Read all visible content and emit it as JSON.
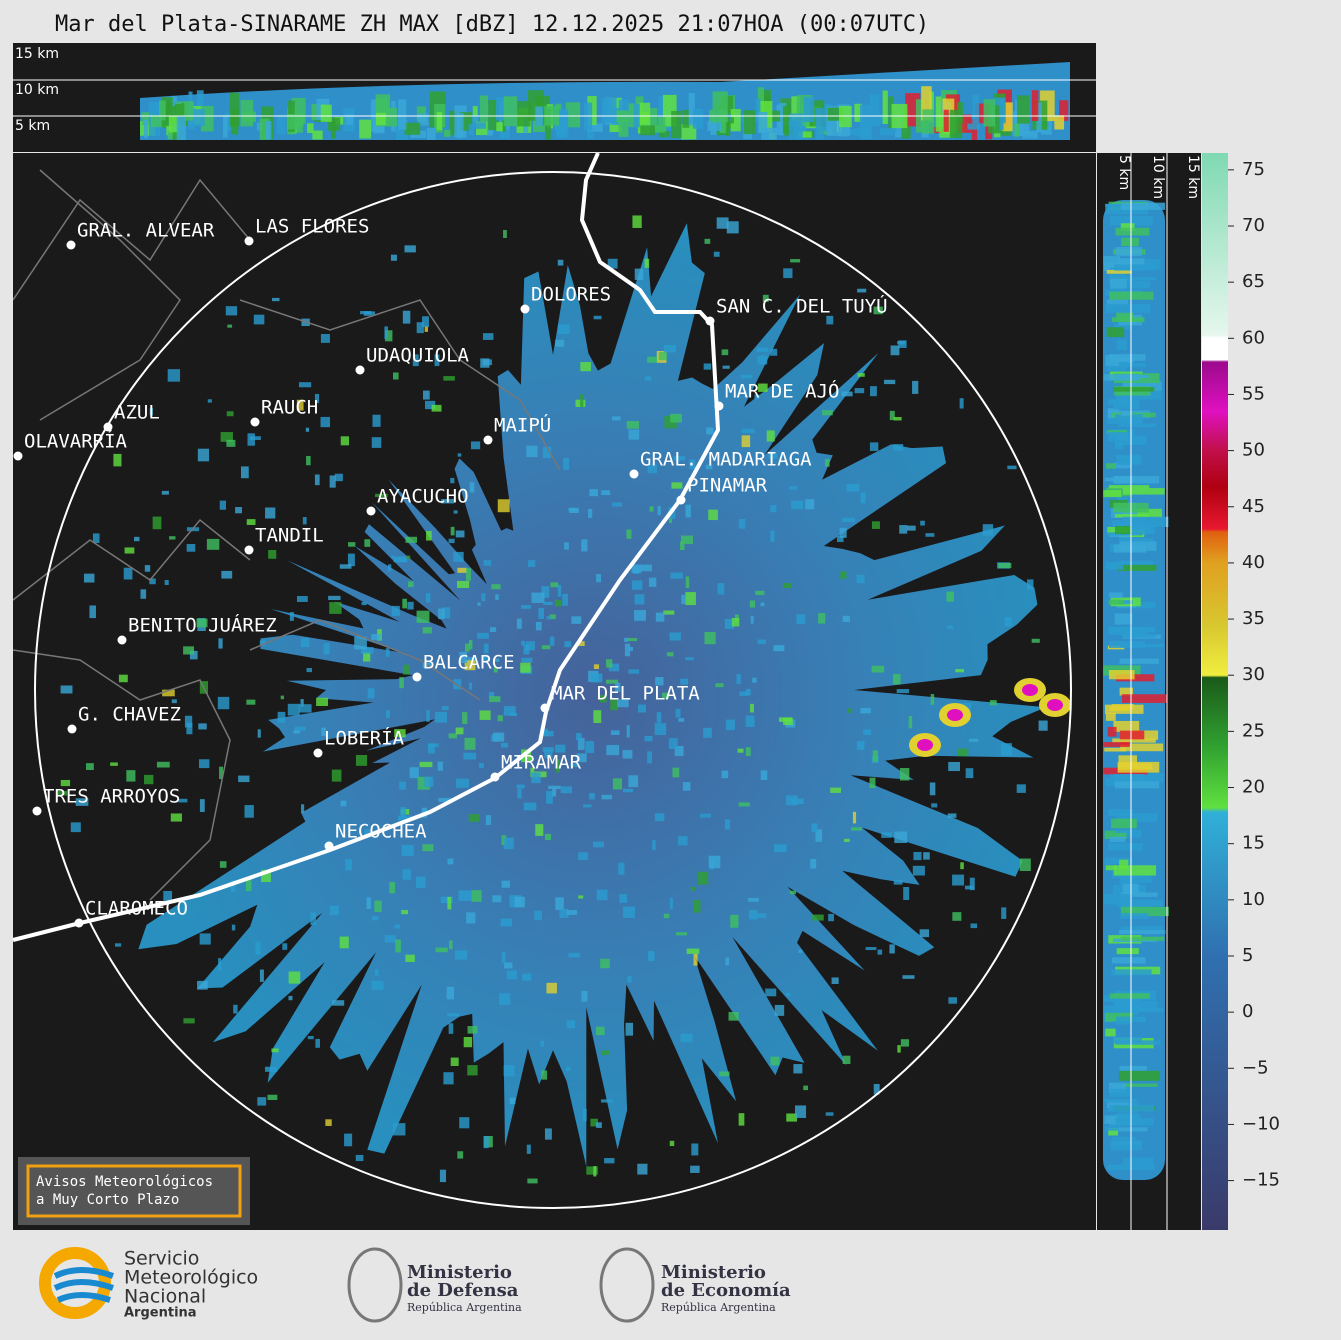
{
  "title": "Mar del Plata-SINARAME ZH MAX [dBZ] 12.12.2025 21:07HOA (00:07UTC)",
  "top_panel": {
    "labels": [
      "15 km",
      "10 km",
      "5 km"
    ]
  },
  "side_panel": {
    "labels": [
      "5 km",
      "10 km",
      "15 km"
    ]
  },
  "colorbar": {
    "lim": [
      -19.4,
      76.5
    ],
    "ticks": [
      75,
      70,
      65,
      60,
      55,
      50,
      45,
      40,
      35,
      30,
      25,
      20,
      15,
      10,
      5,
      0,
      {
        "value": -5,
        "label": "−5"
      },
      {
        "value": -10,
        "label": "−10"
      },
      {
        "value": -15,
        "label": "−15"
      }
    ]
  },
  "cities": [
    "GRAL. ALVEAR",
    "LAS FLORES",
    "DOLORES",
    "SAN C. DEL TUYÚ",
    "UDAQUIOLA",
    "MAR DE AJÓ",
    "AZUL",
    "RAUCH",
    "OLAVARRÍA",
    "MAIPÚ",
    "GRAL. MADARIAGA",
    "PINAMAR",
    "AYACUCHO",
    "TANDIL",
    "BENITO JUÁREZ",
    "BALCARCE",
    "MAR DEL PLATA",
    "G. CHAVEZ",
    "LOBERÍA",
    "MIRAMAR",
    "TRES ARROYOS",
    "NECOCHEA",
    "CLAROMECO"
  ],
  "notice": [
    "Avisos Meteorológicos",
    "a Muy Corto Plazo"
  ],
  "logos": {
    "smn": [
      "Servicio",
      "Meteorológico",
      "Nacional",
      "Argentina"
    ],
    "defensa": [
      "Ministerio",
      "de Defensa",
      "República Argentina"
    ],
    "economia": [
      "Ministerio",
      "de Economía",
      "República Argentina"
    ]
  }
}
